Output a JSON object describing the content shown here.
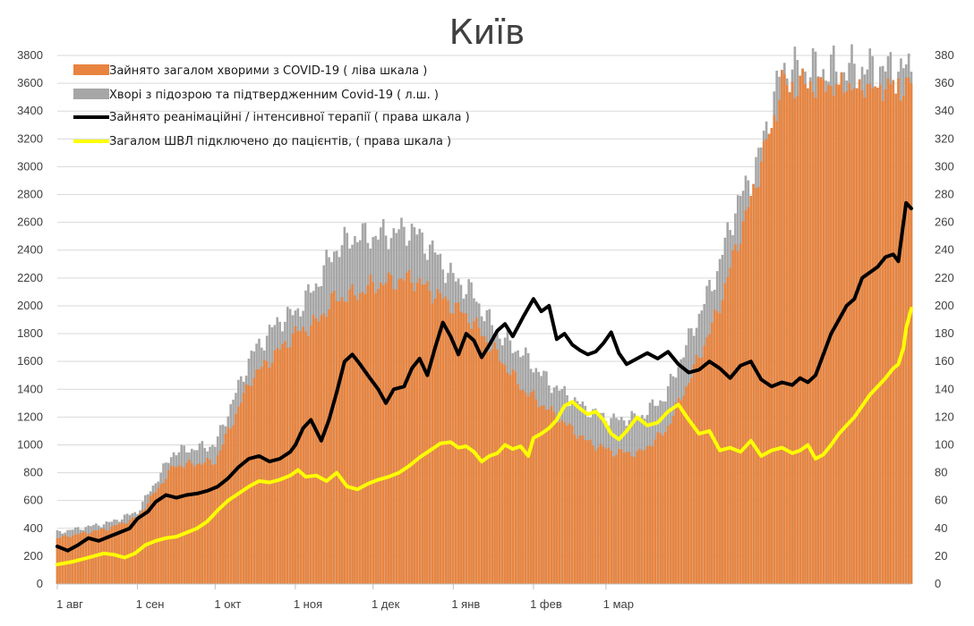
{
  "chart_data": {
    "type": "bar+line",
    "title": "Київ",
    "left_axis": {
      "min": 0,
      "max": 3800,
      "step": 200
    },
    "right_axis": {
      "min": 0,
      "max": 380,
      "step": 20
    },
    "x_tick_labels": [
      "1 авг",
      "1 сен",
      "1 окт",
      "1 ноя",
      "1 дек",
      "1 янв",
      "1 фев",
      "1 мар"
    ],
    "grid": "horizontal",
    "legend_position": "top-left",
    "series": [
      {
        "name": "Зайнято загалом хворими з COVID-19 ( ліва шкала )",
        "type": "bar",
        "axis": "left",
        "color": "#e8843f",
        "keypoints": [
          [
            0,
            330
          ],
          [
            20,
            400
          ],
          [
            31,
            480
          ],
          [
            45,
            850
          ],
          [
            61,
            880
          ],
          [
            75,
            1480
          ],
          [
            92,
            1800
          ],
          [
            100,
            1880
          ],
          [
            107,
            2050
          ],
          [
            115,
            2080
          ],
          [
            122,
            2150
          ],
          [
            137,
            2200
          ],
          [
            145,
            2100
          ],
          [
            153,
            2000
          ],
          [
            160,
            1900
          ],
          [
            170,
            1650
          ],
          [
            180,
            1400
          ],
          [
            190,
            1250
          ],
          [
            205,
            1020
          ],
          [
            215,
            950
          ],
          [
            225,
            940
          ],
          [
            235,
            1100
          ],
          [
            245,
            1500
          ],
          [
            255,
            1950
          ],
          [
            262,
            2400
          ],
          [
            270,
            2900
          ],
          [
            280,
            3600
          ]
        ]
      },
      {
        "name": "Хворі з підозрою та підтвердженним Covid-19 ( л.ш. )",
        "type": "bar",
        "axis": "left",
        "color": "#a6a6a6",
        "keypoints": [
          [
            0,
            370
          ],
          [
            20,
            440
          ],
          [
            31,
            520
          ],
          [
            45,
            950
          ],
          [
            61,
            1000
          ],
          [
            75,
            1650
          ],
          [
            86,
            1900
          ],
          [
            92,
            1950
          ],
          [
            100,
            2150
          ],
          [
            107,
            2400
          ],
          [
            115,
            2500
          ],
          [
            122,
            2500
          ],
          [
            137,
            2550
          ],
          [
            145,
            2400
          ],
          [
            153,
            2200
          ],
          [
            160,
            2100
          ],
          [
            170,
            1800
          ],
          [
            180,
            1650
          ],
          [
            190,
            1450
          ],
          [
            205,
            1250
          ],
          [
            215,
            1180
          ],
          [
            225,
            1200
          ],
          [
            235,
            1350
          ],
          [
            245,
            1800
          ],
          [
            255,
            2250
          ],
          [
            262,
            2700
          ],
          [
            270,
            3000
          ],
          [
            280,
            3700
          ]
        ]
      },
      {
        "name": "Зайнято реанімаційні / інтенсивної терапії ( права шкала )",
        "type": "line",
        "axis": "right",
        "color": "#000000",
        "keypoints": [
          [
            0,
            27
          ],
          [
            4,
            24
          ],
          [
            8,
            28
          ],
          [
            12,
            33
          ],
          [
            16,
            31
          ],
          [
            20,
            34
          ],
          [
            24,
            37
          ],
          [
            28,
            40
          ],
          [
            31,
            47
          ],
          [
            35,
            52
          ],
          [
            38,
            59
          ],
          [
            42,
            64
          ],
          [
            46,
            62
          ],
          [
            50,
            64
          ],
          [
            54,
            65
          ],
          [
            58,
            67
          ],
          [
            62,
            70
          ],
          [
            66,
            76
          ],
          [
            70,
            84
          ],
          [
            74,
            90
          ],
          [
            78,
            92
          ],
          [
            82,
            88
          ],
          [
            86,
            90
          ],
          [
            90,
            95
          ],
          [
            92,
            100
          ],
          [
            95,
            112
          ],
          [
            98,
            118
          ],
          [
            102,
            103
          ],
          [
            105,
            118
          ],
          [
            108,
            138
          ],
          [
            111,
            160
          ],
          [
            114,
            165
          ],
          [
            117,
            158
          ],
          [
            120,
            150
          ],
          [
            124,
            140
          ],
          [
            127,
            130
          ],
          [
            130,
            140
          ],
          [
            134,
            142
          ],
          [
            137,
            155
          ],
          [
            140,
            162
          ],
          [
            143,
            150
          ],
          [
            146,
            170
          ],
          [
            149,
            188
          ],
          [
            152,
            178
          ],
          [
            155,
            165
          ],
          [
            158,
            180
          ],
          [
            161,
            175
          ],
          [
            164,
            163
          ],
          [
            167,
            172
          ],
          [
            170,
            182
          ],
          [
            173,
            187
          ],
          [
            176,
            178
          ],
          [
            180,
            192
          ],
          [
            184,
            205
          ],
          [
            187,
            196
          ],
          [
            190,
            200
          ],
          [
            193,
            176
          ],
          [
            196,
            180
          ],
          [
            199,
            172
          ],
          [
            202,
            168
          ],
          [
            205,
            165
          ],
          [
            208,
            167
          ],
          [
            211,
            173
          ],
          [
            214,
            181
          ],
          [
            217,
            166
          ],
          [
            220,
            158
          ],
          [
            224,
            162
          ],
          [
            228,
            166
          ],
          [
            232,
            162
          ],
          [
            236,
            167
          ],
          [
            240,
            158
          ],
          [
            244,
            152
          ],
          [
            248,
            154
          ],
          [
            252,
            160
          ],
          [
            256,
            155
          ],
          [
            260,
            148
          ],
          [
            264,
            157
          ],
          [
            268,
            160
          ],
          [
            272,
            147
          ],
          [
            276,
            142
          ],
          [
            280,
            145
          ],
          [
            284,
            143
          ],
          [
            287,
            148
          ],
          [
            290,
            145
          ],
          [
            293,
            150
          ],
          [
            296,
            165
          ],
          [
            299,
            180
          ],
          [
            302,
            190
          ],
          [
            305,
            200
          ],
          [
            308,
            205
          ],
          [
            311,
            220
          ],
          [
            314,
            224
          ],
          [
            317,
            228
          ],
          [
            320,
            235
          ],
          [
            323,
            237
          ],
          [
            325,
            232
          ],
          [
            327,
            260
          ],
          [
            328,
            274
          ],
          [
            330,
            270
          ]
        ]
      },
      {
        "name": "Загалом ШВЛ  підключено до пацієнтів, ( права шкала )",
        "type": "line",
        "axis": "right",
        "color": "#ffff00",
        "keypoints": [
          [
            0,
            14
          ],
          [
            6,
            16
          ],
          [
            12,
            19
          ],
          [
            18,
            22
          ],
          [
            22,
            21
          ],
          [
            26,
            19
          ],
          [
            30,
            22
          ],
          [
            34,
            28
          ],
          [
            38,
            31
          ],
          [
            42,
            33
          ],
          [
            46,
            34
          ],
          [
            50,
            37
          ],
          [
            54,
            40
          ],
          [
            58,
            45
          ],
          [
            62,
            53
          ],
          [
            66,
            60
          ],
          [
            70,
            65
          ],
          [
            74,
            70
          ],
          [
            78,
            74
          ],
          [
            82,
            73
          ],
          [
            86,
            75
          ],
          [
            90,
            78
          ],
          [
            93,
            82
          ],
          [
            96,
            77
          ],
          [
            100,
            78
          ],
          [
            104,
            74
          ],
          [
            108,
            80
          ],
          [
            112,
            70
          ],
          [
            116,
            68
          ],
          [
            120,
            72
          ],
          [
            124,
            75
          ],
          [
            128,
            77
          ],
          [
            132,
            80
          ],
          [
            136,
            85
          ],
          [
            140,
            91
          ],
          [
            144,
            96
          ],
          [
            148,
            101
          ],
          [
            152,
            102
          ],
          [
            155,
            98
          ],
          [
            158,
            99
          ],
          [
            161,
            95
          ],
          [
            164,
            88
          ],
          [
            167,
            92
          ],
          [
            170,
            94
          ],
          [
            173,
            100
          ],
          [
            176,
            97
          ],
          [
            179,
            99
          ],
          [
            182,
            92
          ],
          [
            184,
            105
          ],
          [
            187,
            108
          ],
          [
            190,
            112
          ],
          [
            193,
            118
          ],
          [
            196,
            128
          ],
          [
            199,
            131
          ],
          [
            202,
            126
          ],
          [
            205,
            122
          ],
          [
            208,
            124
          ],
          [
            211,
            118
          ],
          [
            214,
            108
          ],
          [
            217,
            104
          ],
          [
            220,
            110
          ],
          [
            224,
            120
          ],
          [
            228,
            114
          ],
          [
            232,
            116
          ],
          [
            236,
            124
          ],
          [
            240,
            129
          ],
          [
            244,
            118
          ],
          [
            248,
            108
          ],
          [
            252,
            110
          ],
          [
            256,
            96
          ],
          [
            260,
            98
          ],
          [
            264,
            95
          ],
          [
            268,
            103
          ],
          [
            272,
            92
          ],
          [
            276,
            96
          ],
          [
            280,
            98
          ],
          [
            284,
            94
          ],
          [
            287,
            96
          ],
          [
            290,
            100
          ],
          [
            293,
            90
          ],
          [
            296,
            93
          ],
          [
            299,
            100
          ],
          [
            302,
            108
          ],
          [
            305,
            114
          ],
          [
            308,
            120
          ],
          [
            311,
            128
          ],
          [
            314,
            136
          ],
          [
            317,
            142
          ],
          [
            320,
            148
          ],
          [
            323,
            155
          ],
          [
            325,
            158
          ],
          [
            327,
            170
          ],
          [
            328,
            184
          ],
          [
            330,
            198
          ]
        ]
      }
    ]
  }
}
